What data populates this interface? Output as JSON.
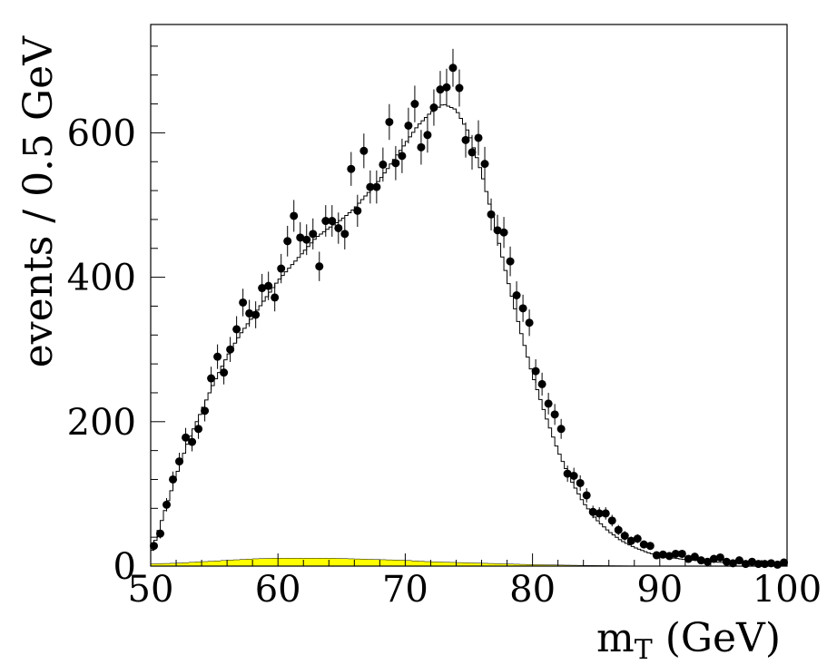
{
  "chart_data": {
    "type": "scatter",
    "title": "",
    "xlabel_main": "m",
    "xlabel_sub": "T",
    "xlabel_unit": " (GeV)",
    "ylabel": "events / 0.5 GeV",
    "xlim": [
      50,
      100
    ],
    "ylim": [
      0,
      750
    ],
    "x_ticks": [
      {
        "value": 50,
        "label": "50"
      },
      {
        "value": 60,
        "label": "60"
      },
      {
        "value": 70,
        "label": "70"
      },
      {
        "value": 80,
        "label": "80"
      },
      {
        "value": 90,
        "label": "90"
      },
      {
        "value": 100,
        "label": "100"
      }
    ],
    "y_ticks": [
      {
        "value": 0,
        "label": "0"
      },
      {
        "value": 200,
        "label": "200"
      },
      {
        "value": 400,
        "label": "400"
      },
      {
        "value": 600,
        "label": "600"
      }
    ],
    "series": [
      {
        "kind": "data_points",
        "color": "#000000",
        "points": [
          [
            50.25,
            28
          ],
          [
            50.75,
            45
          ],
          [
            51.25,
            85
          ],
          [
            51.75,
            120
          ],
          [
            52.25,
            145
          ],
          [
            52.75,
            178
          ],
          [
            53.25,
            172
          ],
          [
            53.75,
            190
          ],
          [
            54.25,
            215
          ],
          [
            54.75,
            260
          ],
          [
            55.25,
            290
          ],
          [
            55.75,
            268
          ],
          [
            56.25,
            300
          ],
          [
            56.75,
            328
          ],
          [
            57.25,
            365
          ],
          [
            57.75,
            350
          ],
          [
            58.25,
            348
          ],
          [
            58.75,
            385
          ],
          [
            59.25,
            388
          ],
          [
            59.75,
            372
          ],
          [
            60.25,
            412
          ],
          [
            60.75,
            450
          ],
          [
            61.25,
            485
          ],
          [
            61.75,
            455
          ],
          [
            62.25,
            452
          ],
          [
            62.75,
            460
          ],
          [
            63.25,
            415
          ],
          [
            63.75,
            478
          ],
          [
            64.25,
            478
          ],
          [
            64.75,
            468
          ],
          [
            65.25,
            460
          ],
          [
            65.75,
            550
          ],
          [
            66.25,
            492
          ],
          [
            66.75,
            575
          ],
          [
            67.25,
            525
          ],
          [
            67.75,
            525
          ],
          [
            68.25,
            556
          ],
          [
            68.75,
            615
          ],
          [
            69.25,
            558
          ],
          [
            69.75,
            568
          ],
          [
            70.25,
            610
          ],
          [
            70.75,
            640
          ],
          [
            71.25,
            580
          ],
          [
            71.75,
            597
          ],
          [
            72.25,
            635
          ],
          [
            72.75,
            660
          ],
          [
            73.25,
            663
          ],
          [
            73.75,
            690
          ],
          [
            74.25,
            662
          ],
          [
            74.75,
            590
          ],
          [
            75.25,
            573
          ],
          [
            75.75,
            593
          ],
          [
            76.25,
            557
          ],
          [
            76.75,
            487
          ],
          [
            77.25,
            465
          ],
          [
            77.75,
            462
          ],
          [
            78.25,
            422
          ],
          [
            78.75,
            375
          ],
          [
            79.25,
            357
          ],
          [
            79.75,
            337
          ],
          [
            80.25,
            270
          ],
          [
            80.75,
            252
          ],
          [
            81.25,
            225
          ],
          [
            81.75,
            210
          ],
          [
            82.25,
            190
          ],
          [
            82.75,
            128
          ],
          [
            83.25,
            125
          ],
          [
            83.75,
            115
          ],
          [
            84.25,
            98
          ],
          [
            84.75,
            75
          ],
          [
            85.25,
            73
          ],
          [
            85.75,
            73
          ],
          [
            86.25,
            63
          ],
          [
            86.75,
            50
          ],
          [
            87.25,
            42
          ],
          [
            87.75,
            35
          ],
          [
            88.25,
            38
          ],
          [
            88.75,
            30
          ],
          [
            89.25,
            28
          ],
          [
            89.75,
            15
          ],
          [
            90.25,
            16
          ],
          [
            90.75,
            14
          ],
          [
            91.25,
            17
          ],
          [
            91.75,
            17
          ],
          [
            92.25,
            10
          ],
          [
            92.75,
            13
          ],
          [
            93.25,
            8
          ],
          [
            93.75,
            6
          ],
          [
            94.25,
            10
          ],
          [
            94.75,
            12
          ],
          [
            95.25,
            6
          ],
          [
            95.75,
            4
          ],
          [
            96.25,
            8
          ],
          [
            96.75,
            3
          ],
          [
            97.25,
            6
          ],
          [
            97.75,
            3
          ],
          [
            98.25,
            3
          ],
          [
            98.75,
            4
          ],
          [
            99.25,
            2
          ],
          [
            99.75,
            5
          ]
        ]
      },
      {
        "kind": "mc_histogram",
        "color": "#000000",
        "curve": [
          [
            50,
            15
          ],
          [
            51,
            70
          ],
          [
            52,
            125
          ],
          [
            53,
            175
          ],
          [
            54,
            215
          ],
          [
            55,
            255
          ],
          [
            56,
            290
          ],
          [
            57,
            320
          ],
          [
            58,
            345
          ],
          [
            59,
            370
          ],
          [
            60,
            395
          ],
          [
            61,
            415
          ],
          [
            62,
            435
          ],
          [
            63,
            455
          ],
          [
            64,
            468
          ],
          [
            65,
            480
          ],
          [
            66,
            495
          ],
          [
            67,
            515
          ],
          [
            68,
            535
          ],
          [
            69,
            560
          ],
          [
            70,
            585
          ],
          [
            71,
            610
          ],
          [
            72,
            628
          ],
          [
            73,
            640
          ],
          [
            74,
            632
          ],
          [
            75,
            600
          ],
          [
            76,
            545
          ],
          [
            77,
            475
          ],
          [
            78,
            400
          ],
          [
            79,
            330
          ],
          [
            80,
            265
          ],
          [
            81,
            210
          ],
          [
            82,
            160
          ],
          [
            83,
            120
          ],
          [
            84,
            88
          ],
          [
            85,
            65
          ],
          [
            86,
            48
          ],
          [
            87,
            35
          ],
          [
            88,
            26
          ],
          [
            89,
            19
          ],
          [
            90,
            14
          ],
          [
            92,
            9
          ],
          [
            94,
            6
          ],
          [
            96,
            4
          ],
          [
            98,
            3
          ],
          [
            100,
            2
          ]
        ]
      },
      {
        "kind": "background",
        "color": "#ffff00",
        "curve": [
          [
            50,
            3
          ],
          [
            52,
            4
          ],
          [
            54,
            6
          ],
          [
            56,
            8
          ],
          [
            58,
            10
          ],
          [
            60,
            11
          ],
          [
            62,
            11
          ],
          [
            64,
            11
          ],
          [
            66,
            10
          ],
          [
            68,
            9
          ],
          [
            70,
            8
          ],
          [
            72,
            6
          ],
          [
            74,
            5
          ],
          [
            76,
            4
          ],
          [
            78,
            3
          ],
          [
            80,
            2
          ],
          [
            84,
            1
          ],
          [
            90,
            0
          ],
          [
            100,
            0
          ]
        ]
      }
    ]
  }
}
